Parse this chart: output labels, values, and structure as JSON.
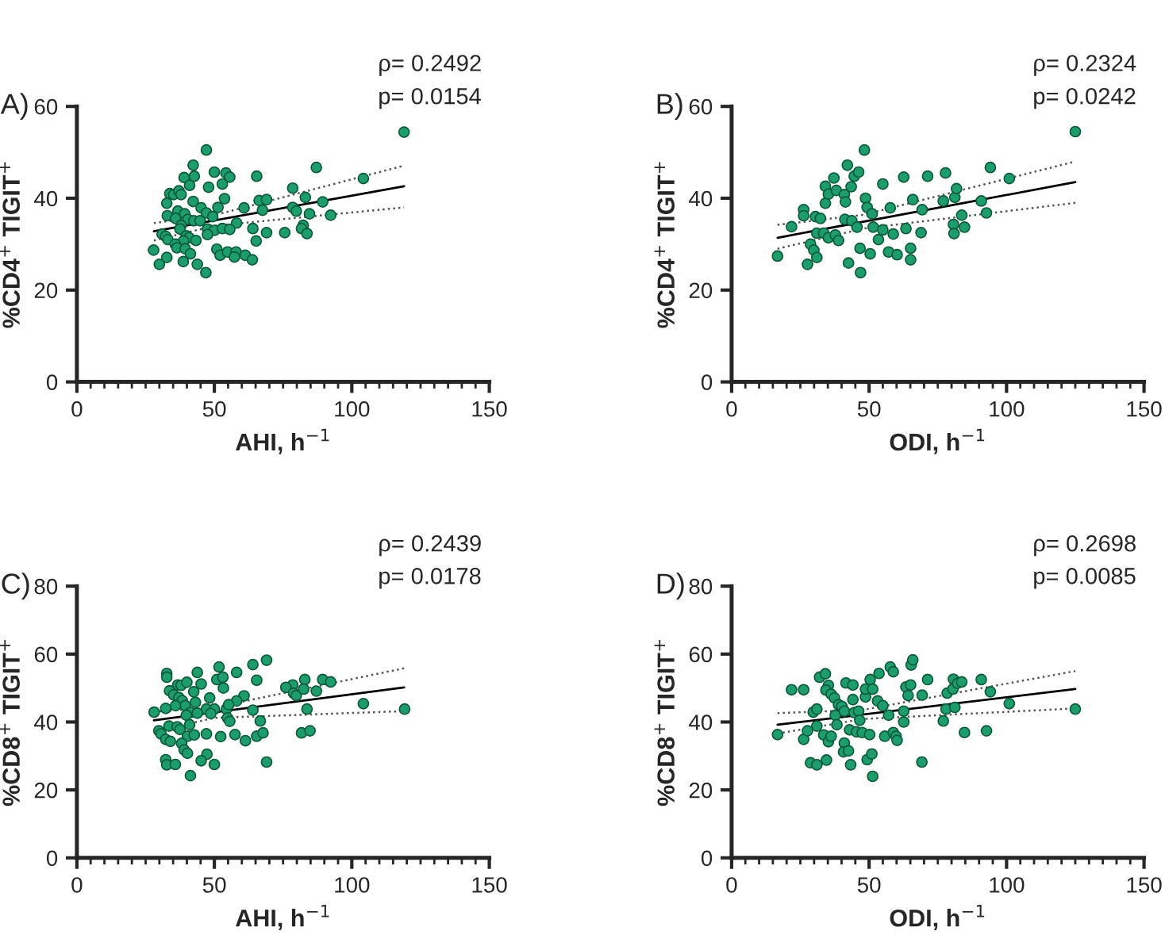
{
  "chart_data": [
    {
      "type": "scatter",
      "title": "A)",
      "xlabel": "AHI, h$^{−1}$",
      "ylabel": "%CD4$^{+}$ TIGIT$^{+}$",
      "annotations": [
        "ρ= 0.2492",
        "p= 0.0154"
      ],
      "xlim": [
        0,
        150
      ],
      "xticks": [
        0,
        50,
        100,
        150
      ],
      "ylim": [
        0,
        60
      ],
      "yticks": [
        0,
        20,
        40,
        60
      ],
      "grid": false,
      "legend": false,
      "series": [
        {
          "marker": "circle",
          "color": "#1b9e6b",
          "x": [
            119,
            47.1,
            42.3,
            87.1,
            50,
            54.2,
            55.6,
            39,
            42.7,
            65.4,
            104.2,
            41,
            52.9,
            47.9,
            78.5,
            33.8,
            35.2,
            37.1,
            37.9,
            53.7,
            32.7,
            42.3,
            66.3,
            69,
            83.1,
            89.4,
            45.2,
            51.3,
            60.8,
            67.5,
            78.5,
            79.8,
            36.7,
            39.2,
            32.9,
            47.1,
            84.6,
            92.3,
            35.9,
            40.4,
            42.5,
            44.8,
            49.4,
            58.1,
            37.9,
            37.5,
            47.5,
            50,
            52.9,
            55.6,
            64,
            82.3,
            81.7,
            69,
            75.6,
            83.7,
            31,
            32.3,
            33.1,
            39.8,
            40.8,
            38.8,
            43.3,
            47.5,
            65.2,
            35.8,
            36.4,
            39.4,
            41.3,
            27.9,
            32.7,
            50.9,
            52.1,
            54.8,
            57.9,
            57.3,
            61.2,
            63.8,
            30,
            38.7,
            43.8,
            46.9
          ],
          "values": [
            54.4,
            50.5,
            47.2,
            46.7,
            45.7,
            45.5,
            44.6,
            44.5,
            44.8,
            44.8,
            44.3,
            42.8,
            43.1,
            42.4,
            42.2,
            41,
            40.8,
            41.6,
            40.8,
            39.9,
            38.9,
            39.3,
            39.5,
            39.7,
            40.2,
            39.2,
            37.9,
            38,
            37.9,
            37.4,
            38,
            37.2,
            37.2,
            36.6,
            36.2,
            36.8,
            36.6,
            36.3,
            35.6,
            35.4,
            35.1,
            35.1,
            36,
            34.6,
            34.1,
            33.3,
            33.3,
            33,
            33.4,
            33.2,
            33.4,
            34.1,
            33.4,
            32.5,
            32.5,
            32.3,
            32.2,
            31.7,
            31,
            31.8,
            31.4,
            30.7,
            30.8,
            32.1,
            30.7,
            30,
            29.2,
            29,
            27.9,
            28.7,
            27.1,
            28.9,
            27.6,
            28.3,
            28.3,
            27.2,
            27.6,
            26.6,
            25.6,
            26.2,
            25.6,
            23.8
          ]
        },
        {
          "type": "line",
          "color": "#000000",
          "line_style": "solid",
          "x": [
            28,
            119
          ],
          "values": [
            32.8,
            42.6
          ]
        },
        {
          "type": "line",
          "color": "#555555",
          "line_style": "dotted",
          "x": [
            28,
            50,
            119
          ],
          "values": [
            34.6,
            36.3,
            47.1
          ]
        },
        {
          "type": "line",
          "color": "#555555",
          "line_style": "dotted",
          "x": [
            28,
            50,
            119
          ],
          "values": [
            30.8,
            34,
            38
          ]
        }
      ]
    },
    {
      "type": "scatter",
      "title": "B)",
      "xlabel": "ODI, h$^{−1}$",
      "ylabel": "%CD4$^{+}$ TIGIT$^{+}$",
      "annotations": [
        "ρ= 0.2324",
        "p= 0.0242"
      ],
      "xlim": [
        0,
        150
      ],
      "xticks": [
        0,
        50,
        100,
        150
      ],
      "ylim": [
        0,
        60
      ],
      "yticks": [
        0,
        20,
        40,
        60
      ],
      "grid": false,
      "legend": false,
      "series": [
        {
          "marker": "circle",
          "color": "#1b9e6b",
          "x": [
            16.7,
            21.8,
            26.2,
            26.2,
            27.6,
            28.7,
            29.9,
            31,
            30.5,
            31,
            32.3,
            33.5,
            34.1,
            34.1,
            35.2,
            35.2,
            37.2,
            38.1,
            37.7,
            38.9,
            41,
            41.4,
            41.2,
            42.1,
            42.5,
            43.5,
            43.7,
            44.6,
            45.6,
            46.2,
            46.7,
            46.9,
            48.3,
            48.7,
            49.3,
            50.4,
            51.1,
            51.5,
            53.4,
            55,
            55,
            57.1,
            57.7,
            58.8,
            60.2,
            62.6,
            63.4,
            65.1,
            65.1,
            65.9,
            68.9,
            69.3,
            71.3,
            77,
            77.8,
            80.7,
            80.9,
            81.2,
            81.8,
            83.7,
            84.7,
            90.8,
            92.7,
            94.1,
            101,
            125
          ],
          "values": [
            27.4,
            33.8,
            37.5,
            36.2,
            25.6,
            30,
            28.7,
            27.1,
            36,
            32.4,
            35.6,
            32.4,
            42.6,
            38.9,
            40.9,
            31.4,
            44.4,
            41.7,
            32,
            30.8,
            40.8,
            39.2,
            35.4,
            47.2,
            25.9,
            42.5,
            35.1,
            44.8,
            33.7,
            45.7,
            29.1,
            23.8,
            50.5,
            40,
            38,
            27.9,
            36.6,
            33.7,
            31,
            43.1,
            33.1,
            28.3,
            37.9,
            32.2,
            27.7,
            44.6,
            33.4,
            29.1,
            26.6,
            39.7,
            32.5,
            37.5,
            44.8,
            39.4,
            45.5,
            34.3,
            32.3,
            40.2,
            42.1,
            36.3,
            33.7,
            39.4,
            36.8,
            46.7,
            44.3,
            54.5
          ]
        },
        {
          "type": "line",
          "color": "#000000",
          "line_style": "solid",
          "x": [
            16.7,
            125
          ],
          "values": [
            31.4,
            43.5
          ]
        },
        {
          "type": "line",
          "color": "#555555",
          "line_style": "dotted",
          "x": [
            16.7,
            48,
            125
          ],
          "values": [
            34.2,
            36.4,
            48
          ]
        },
        {
          "type": "line",
          "color": "#555555",
          "line_style": "dotted",
          "x": [
            16.7,
            48,
            125
          ],
          "values": [
            29,
            33.4,
            39
          ]
        }
      ]
    },
    {
      "type": "scatter",
      "title": "C)",
      "xlabel": "AHI, h$^{−1}$",
      "ylabel": "%CD8$^{+}$ TIGIT$^{+}$",
      "annotations": [
        "ρ= 0.2439",
        "p= 0.0178"
      ],
      "xlim": [
        0,
        150
      ],
      "xticks": [
        0,
        50,
        100,
        150
      ],
      "ylim": [
        0,
        80
      ],
      "yticks": [
        0,
        20,
        40,
        60,
        80
      ],
      "grid": false,
      "legend": false,
      "series": [
        {
          "marker": "circle",
          "color": "#1b9e6b",
          "x": [
            69,
            64,
            43.8,
            51.7,
            58.1,
            32.7,
            32.7,
            50.9,
            53.1,
            65.4,
            82.9,
            89.4,
            92.3,
            36.7,
            37.9,
            40,
            45.2,
            53.3,
            78.5,
            76,
            33.7,
            35.2,
            37.1,
            42.5,
            48.3,
            60.8,
            58.1,
            78.8,
            79.8,
            82.5,
            87.1,
            38.3,
            39.4,
            43.1,
            32.3,
            35.9,
            47.1,
            50,
            54.4,
            55.2,
            64,
            83.7,
            104.2,
            119.2,
            28.1,
            41.3,
            48.7,
            43.8,
            39.8,
            54.8,
            55.6,
            66.7,
            41,
            33.5,
            36.5,
            37.5,
            29.8,
            30.6,
            32.3,
            34,
            40.2,
            42.7,
            47.1,
            52.3,
            57.5,
            65.4,
            67.7,
            61.3,
            81.7,
            84.8,
            38.1,
            39,
            40.2,
            47.3,
            45.2,
            32.3,
            32.7,
            35.8,
            50,
            69,
            41.3
          ],
          "values": [
            58.2,
            56.9,
            54.6,
            56.2,
            54.6,
            54.3,
            53.2,
            52.5,
            53.2,
            52.3,
            52.5,
            52.5,
            51.8,
            50.9,
            50.8,
            51.7,
            51.2,
            50,
            50.9,
            50.2,
            49.2,
            48,
            47.2,
            48.9,
            47.1,
            47.7,
            46.2,
            48.5,
            47.8,
            49.7,
            49.1,
            46.3,
            44.8,
            45.8,
            44,
            44.8,
            43.8,
            43.8,
            43.8,
            45.1,
            43.5,
            43.8,
            45.4,
            43.8,
            42.9,
            42.8,
            42.5,
            42.6,
            42,
            41.2,
            40.2,
            40.3,
            39.2,
            38.8,
            38.6,
            37.8,
            37.4,
            36.5,
            34.9,
            34.3,
            35.8,
            36.2,
            36.5,
            35.7,
            36.3,
            35.8,
            36.8,
            34.5,
            36.8,
            37.4,
            33.7,
            31.8,
            30.8,
            30.5,
            28.6,
            28.9,
            27.4,
            27.5,
            27.5,
            28.2,
            24.2
          ]
        },
        {
          "type": "line",
          "color": "#000000",
          "line_style": "solid",
          "x": [
            28,
            119
          ],
          "values": [
            40.5,
            50.2
          ]
        },
        {
          "type": "line",
          "color": "#555555",
          "line_style": "dotted",
          "x": [
            28,
            50,
            119
          ],
          "values": [
            43,
            44.3,
            55.8
          ]
        },
        {
          "type": "line",
          "color": "#555555",
          "line_style": "dotted",
          "x": [
            28,
            50,
            119
          ],
          "values": [
            37.2,
            41.2,
            43.2
          ]
        }
      ]
    },
    {
      "type": "scatter",
      "title": "D)",
      "xlabel": "ODI, h$^{−1}$",
      "ylabel": "%CD8$^{+}$ TIGIT$^{+}$",
      "annotations": [
        "ρ= 0.2698",
        "p= 0.0085"
      ],
      "xlim": [
        0,
        150
      ],
      "xticks": [
        0,
        50,
        100,
        150
      ],
      "ylim": [
        0,
        80
      ],
      "yticks": [
        0,
        20,
        40,
        60,
        80
      ],
      "grid": false,
      "legend": false,
      "series": [
        {
          "marker": "circle",
          "color": "#1b9e6b",
          "x": [
            16.7,
            21.8,
            26.2,
            26.2,
            27.6,
            28.7,
            31,
            29.7,
            31,
            31,
            32,
            34.1,
            35.2,
            34.3,
            33.5,
            35.2,
            36.2,
            34.5,
            36.2,
            37.4,
            37.7,
            38.3,
            38.9,
            40.1,
            41,
            41.6,
            41,
            40.7,
            42.5,
            42.9,
            43.3,
            44.1,
            44.1,
            44.6,
            45.4,
            46.2,
            46.6,
            47.5,
            48.7,
            48.7,
            49.3,
            50.2,
            50.4,
            51,
            51.3,
            51.3,
            53.1,
            53.6,
            55,
            55.7,
            57.1,
            57.7,
            58.8,
            58.8,
            59.8,
            60.2,
            62.6,
            62.6,
            63.4,
            64.2,
            65.1,
            65.3,
            65.9,
            69.2,
            69.3,
            71.3,
            77,
            78,
            78.4,
            80.5,
            80.7,
            81.2,
            82.2,
            83.7,
            84.7,
            90.8,
            92.7,
            94.1,
            101,
            125
          ],
          "values": [
            36.3,
            49.5,
            49.5,
            34.9,
            37.4,
            28,
            27.4,
            42.9,
            43.8,
            38.8,
            53.2,
            54.2,
            50.8,
            49.4,
            36.2,
            34.2,
            35.8,
            28.8,
            48.2,
            47.1,
            42,
            39.2,
            45.1,
            44.6,
            43.2,
            51.5,
            33.8,
            31.2,
            31.5,
            37.7,
            27.4,
            50.9,
            46.6,
            42.8,
            37.1,
            43.2,
            40.5,
            36.9,
            47.4,
            49.7,
            28.9,
            36.3,
            52.5,
            30.6,
            24,
            49.7,
            46.2,
            54.3,
            44.8,
            35.8,
            42,
            56.2,
            54.8,
            36.9,
            35.8,
            34.6,
            43.2,
            40,
            50.3,
            47.8,
            50.9,
            56.8,
            58.3,
            28.2,
            47.9,
            52.5,
            40.3,
            43.8,
            48.5,
            49.7,
            52.6,
            44.3,
            51.4,
            51.8,
            36.9,
            52.5,
            37.4,
            48.9,
            45.4,
            43.8
          ]
        },
        {
          "type": "line",
          "color": "#000000",
          "line_style": "solid",
          "x": [
            16.7,
            125
          ],
          "values": [
            39.2,
            49.7
          ]
        },
        {
          "type": "line",
          "color": "#555555",
          "line_style": "dotted",
          "x": [
            16.7,
            48,
            125
          ],
          "values": [
            42.6,
            43.6,
            55
          ]
        },
        {
          "type": "line",
          "color": "#555555",
          "line_style": "dotted",
          "x": [
            16.7,
            48,
            125
          ],
          "values": [
            36.6,
            40.9,
            44
          ]
        }
      ]
    }
  ]
}
